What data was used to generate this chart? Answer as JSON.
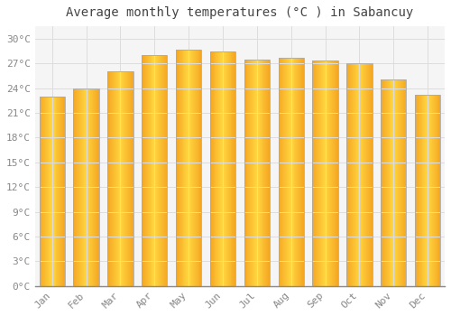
{
  "months": [
    "Jan",
    "Feb",
    "Mar",
    "Apr",
    "May",
    "Jun",
    "Jul",
    "Aug",
    "Sep",
    "Oct",
    "Nov",
    "Dec"
  ],
  "temperatures": [
    23.0,
    24.0,
    26.0,
    28.0,
    28.7,
    28.4,
    27.5,
    27.7,
    27.3,
    27.0,
    25.0,
    23.2
  ],
  "bar_color_center": "#FFD740",
  "bar_color_edge": "#F5A623",
  "bar_border_color": "#AAAAAA",
  "background_color": "#FFFFFF",
  "plot_background": "#F5F5F5",
  "grid_color": "#DDDDDD",
  "title": "Average monthly temperatures (°C ) in Sabancuy",
  "title_fontsize": 10,
  "title_font": "monospace",
  "ylabel_ticks": [
    0,
    3,
    6,
    9,
    12,
    15,
    18,
    21,
    24,
    27,
    30
  ],
  "ylim": [
    0,
    31.5
  ],
  "tick_font": "monospace",
  "tick_fontsize": 8,
  "tick_color": "#888888",
  "bar_width": 0.75
}
